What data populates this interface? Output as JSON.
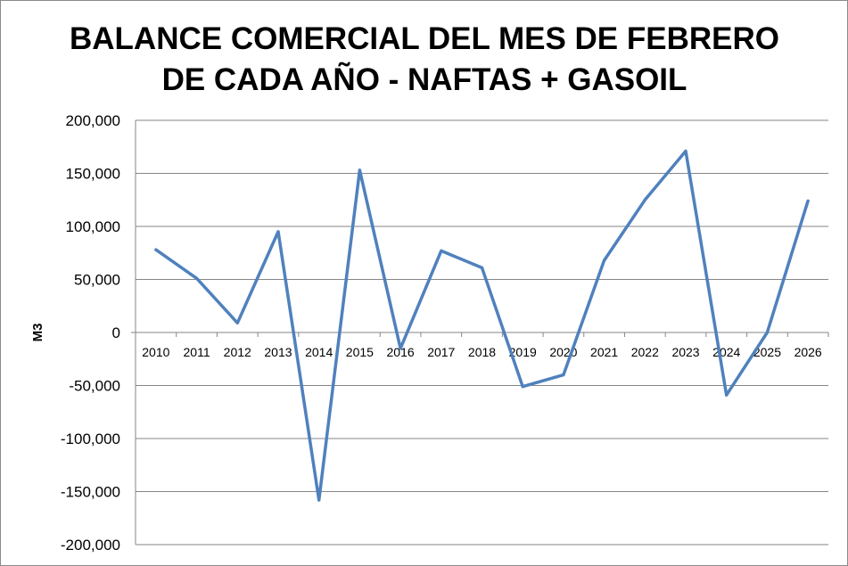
{
  "chart_data": {
    "type": "line",
    "title_lines": [
      "BALANCE COMERCIAL DEL MES DE FEBRERO",
      "DE CADA AÑO - NAFTAS + GASOIL"
    ],
    "ylabel": "M3",
    "xlabel": "",
    "ylim": [
      -200000,
      200000
    ],
    "yticks": [
      200000,
      150000,
      100000,
      50000,
      0,
      -50000,
      -100000,
      -150000,
      -200000
    ],
    "ytick_labels": [
      "200,000",
      "150,000",
      "100,000",
      "50,000",
      "0",
      "-50,000",
      "-100,000",
      "-150,000",
      "-200,000"
    ],
    "grid": true,
    "legend": "none",
    "line_color": "#4f81bd",
    "categories": [
      "2010",
      "2011",
      "2012",
      "2013",
      "2014",
      "2015",
      "2016",
      "2017",
      "2018",
      "2019",
      "2020",
      "2021",
      "2022",
      "2023",
      "2024",
      "2025",
      "2026"
    ],
    "series": [
      {
        "values": [
          78000,
          51000,
          9000,
          95000,
          -158000,
          153000,
          -15000,
          77000,
          61000,
          -51000,
          -40000,
          68000,
          125000,
          171000,
          -59000,
          0,
          124000
        ]
      }
    ]
  }
}
